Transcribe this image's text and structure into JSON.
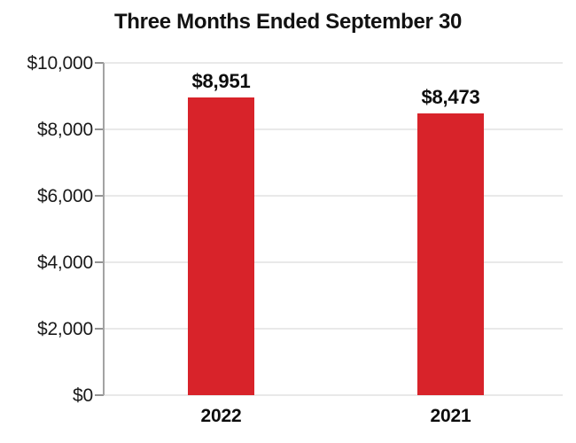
{
  "chart_data": {
    "type": "bar",
    "title": "Three Months Ended September 30",
    "categories": [
      "2022",
      "2021"
    ],
    "values": [
      8951,
      8473
    ],
    "value_labels": [
      "$8,951",
      "$8,473"
    ],
    "xlabel": "",
    "ylabel": "",
    "ylim": [
      0,
      10000
    ],
    "ytick_values": [
      0,
      2000,
      4000,
      6000,
      8000,
      10000
    ],
    "ytick_labels": [
      "$0",
      "$2,000",
      "$4,000",
      "$6,000",
      "$8,000",
      "$10,000"
    ],
    "grid": "horizontal",
    "legend": "none",
    "bar_color": "#d8232a",
    "axis_color": "#a3a3a3",
    "tick_color": "#939393",
    "gridline_color": "#e9e9e9",
    "text_color": "#0d0d0d"
  }
}
